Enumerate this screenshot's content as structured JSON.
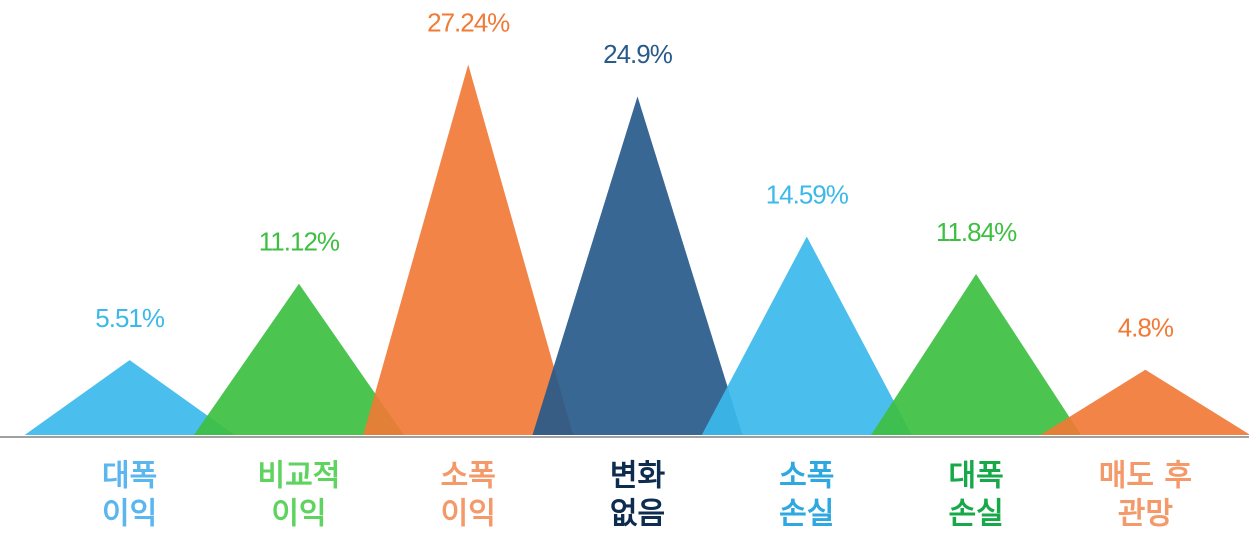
{
  "chart_data": {
    "type": "triangle-bar",
    "categories": [
      [
        "대폭",
        "이익"
      ],
      [
        "비교적",
        "이익"
      ],
      [
        "소폭",
        "이익"
      ],
      [
        "변화",
        "없음"
      ],
      [
        "소폭",
        "손실"
      ],
      [
        "대폭",
        "손실"
      ],
      [
        "매도 후",
        "관망"
      ]
    ],
    "values": [
      5.51,
      11.12,
      27.24,
      24.9,
      14.59,
      11.84,
      4.8
    ],
    "value_labels": [
      "5.51%",
      "11.12%",
      "27.24%",
      "24.9%",
      "14.59%",
      "11.84%",
      "4.8%"
    ],
    "colors": [
      "#3bb9ea",
      "#3dbf41",
      "#f07a36",
      "#285a8a",
      "#3bb9ea",
      "#3dbf41",
      "#f07a36"
    ],
    "label_colors": [
      "#5ab6ef",
      "#5fd35f",
      "#f49a6a",
      "#0d2c4f",
      "#2ea8e0",
      "#17a84a",
      "#f49a6a"
    ],
    "ylim": [
      0,
      30
    ]
  }
}
